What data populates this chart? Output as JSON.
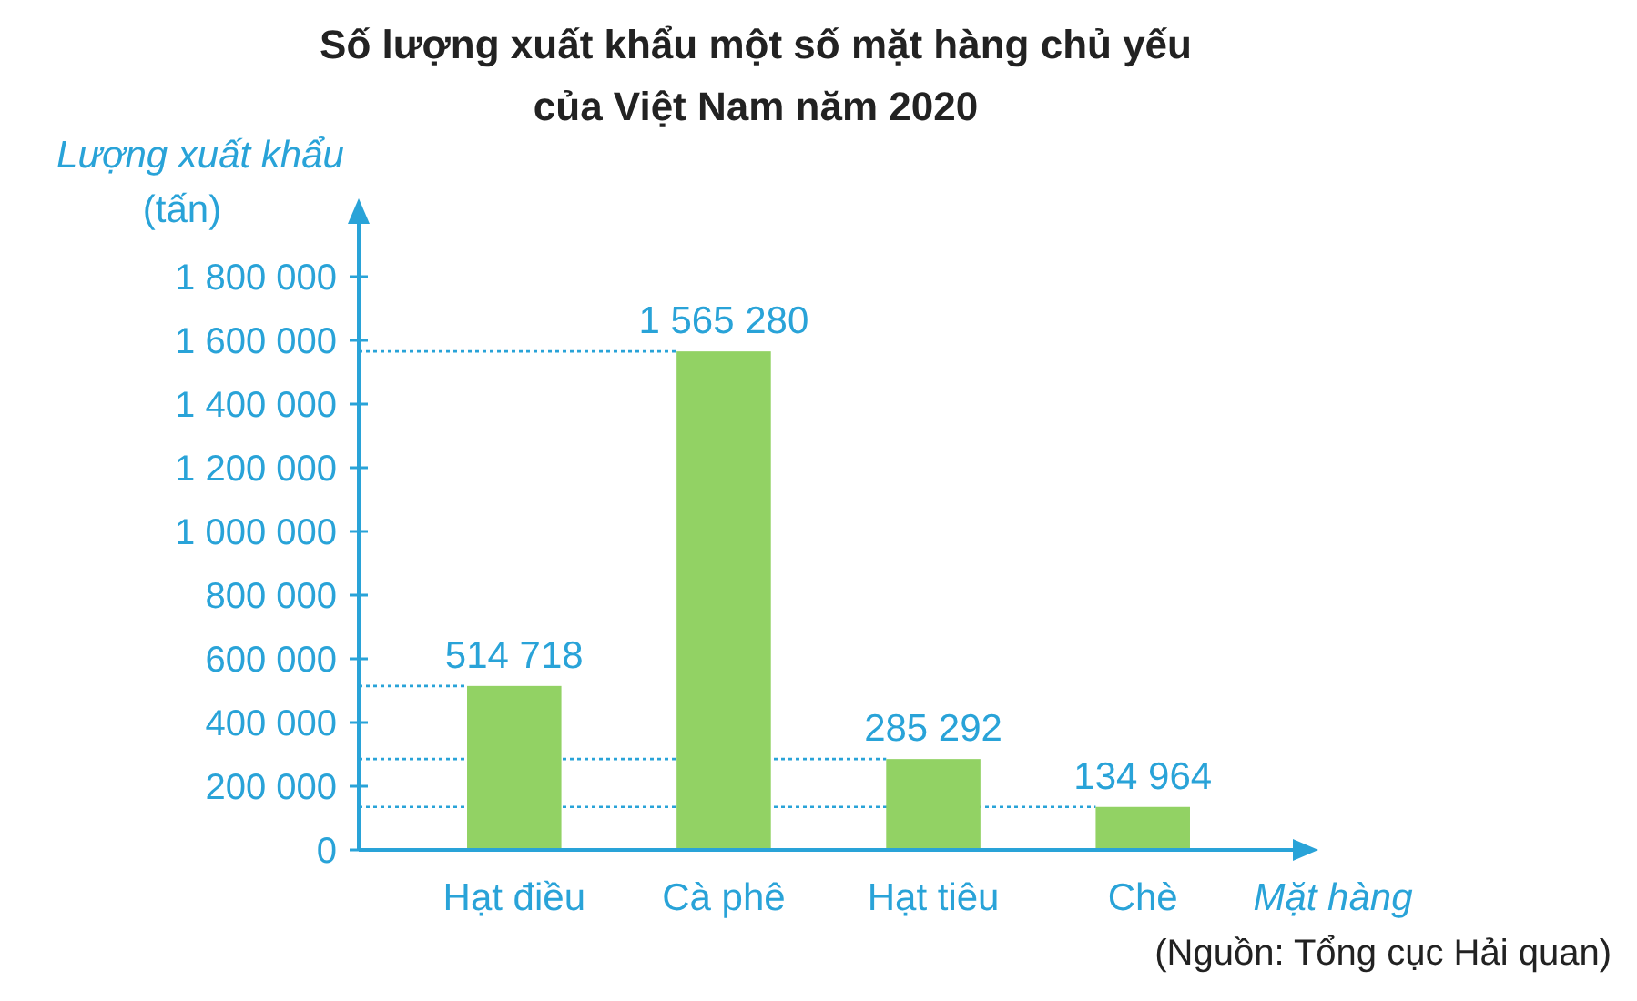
{
  "chart_data": {
    "type": "bar",
    "title": "Số lượng xuất khẩu một số mặt hàng chủ yếu\ncủa Việt Nam năm 2020",
    "xlabel": "Mặt hàng",
    "ylabel": "Lượng xuất khẩu\n(tấn)",
    "categories": [
      "Hạt điều",
      "Cà phê",
      "Hạt tiêu",
      "Chè"
    ],
    "values": [
      514718,
      1565280,
      285292,
      134964
    ],
    "value_labels": [
      "514 718",
      "1 565 280",
      "285 292",
      "134 964"
    ],
    "color": "#92d264",
    "ylim": [
      0,
      2000000
    ],
    "yticks": [
      0,
      {
        "value": 200000,
        "label": "200 000"
      },
      {
        "value": 400000,
        "label": "400 000"
      },
      {
        "value": 600000,
        "label": "600 000"
      },
      {
        "value": 800000,
        "label": "800 000"
      },
      {
        "value": 1000000,
        "label": "1 000 000"
      },
      {
        "value": 1200000,
        "label": "1 200 000"
      },
      {
        "value": 1400000,
        "label": "1 400 000"
      },
      {
        "value": 1600000,
        "label": "1 600 000"
      },
      {
        "value": 1800000,
        "label": "1 800 000"
      }
    ],
    "ref_lines": [
      {
        "axis": "y",
        "value": 514718,
        "color": "#29a3d8",
        "line_style": "dotted"
      },
      {
        "axis": "y",
        "value": 1565280,
        "color": "#29a3d8",
        "line_style": "dotted"
      },
      {
        "axis": "y",
        "value": 285292,
        "color": "#29a3d8",
        "line_style": "dotted"
      },
      {
        "axis": "y",
        "value": 134964,
        "color": "#29a3d8",
        "line_style": "dotted"
      }
    ],
    "annotations": [
      "(Nguồn: Tổng cục Hải quan)"
    ],
    "grid": false
  }
}
